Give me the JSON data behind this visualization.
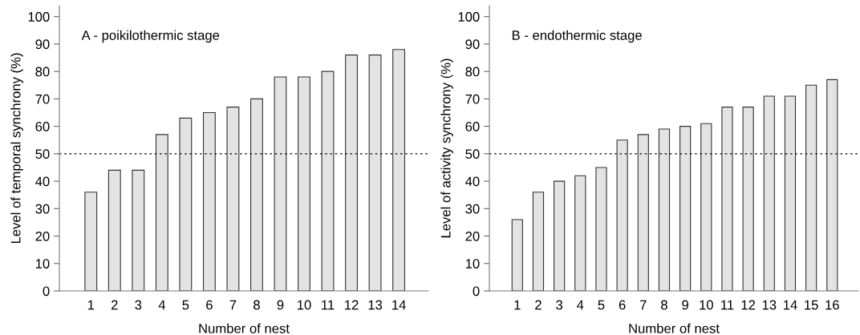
{
  "chart_data": [
    {
      "type": "bar",
      "xlabel": "Number of nest",
      "ylabel": "Level of temporal synchrony (%)",
      "annotations": [
        "A - poikilothermic stage"
      ],
      "categories": [
        "1",
        "2",
        "3",
        "4",
        "5",
        "6",
        "7",
        "8",
        "9",
        "10",
        "11",
        "12",
        "13",
        "14"
      ],
      "series": [
        {
          "color": "#e3e3e3",
          "values": [
            36,
            44,
            44,
            57,
            63,
            65,
            67,
            70,
            78,
            78,
            80,
            86,
            86,
            88
          ]
        }
      ],
      "ylim": [
        0,
        104
      ],
      "yticks": [
        0,
        10,
        20,
        30,
        40,
        50,
        60,
        70,
        80,
        90,
        100
      ],
      "grid": false,
      "legend": false,
      "ref_lines": [
        {
          "axis": "y",
          "value": 50,
          "color": "#000000",
          "line_style": "dotted"
        }
      ]
    },
    {
      "type": "bar",
      "xlabel": "Number of nest",
      "ylabel": "Level of activity synchrony (%)",
      "annotations": [
        "B - endothermic stage"
      ],
      "categories": [
        "1",
        "2",
        "3",
        "4",
        "5",
        "6",
        "7",
        "8",
        "9",
        "10",
        "11",
        "12",
        "13",
        "14",
        "15",
        "16"
      ],
      "series": [
        {
          "color": "#e3e3e3",
          "values": [
            26,
            36,
            40,
            42,
            45,
            55,
            57,
            59,
            60,
            61,
            67,
            67,
            71,
            71,
            75,
            77
          ]
        }
      ],
      "ylim": [
        0,
        104
      ],
      "yticks": [
        0,
        10,
        20,
        30,
        40,
        50,
        60,
        70,
        80,
        90,
        100
      ],
      "grid": false,
      "legend": false,
      "ref_lines": [
        {
          "axis": "y",
          "value": 50,
          "color": "#000000",
          "line_style": "dotted"
        }
      ]
    }
  ]
}
